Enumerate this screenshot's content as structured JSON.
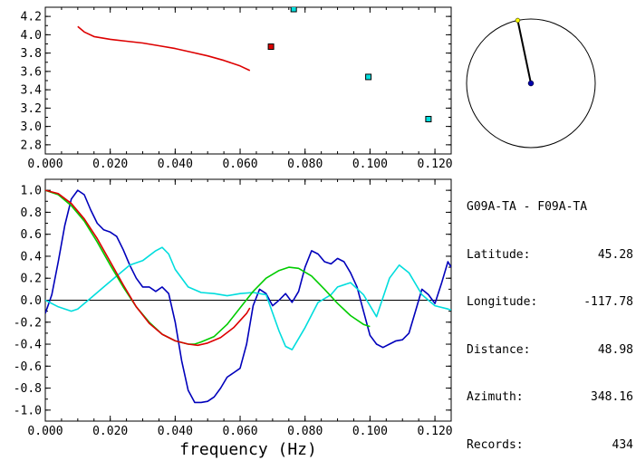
{
  "info_panel": {
    "title": "G09A-TA - F09A-TA",
    "rows": [
      {
        "label": "Latitude:",
        "value": "45.28"
      },
      {
        "label": "Longitude:",
        "value": "-117.78"
      },
      {
        "label": "Distance:",
        "value": "48.98"
      },
      {
        "label": "Azimuth:",
        "value": "348.16"
      },
      {
        "label": "Records:",
        "value": "434"
      }
    ]
  },
  "compass": {
    "azimuth_deg": 348.16,
    "colors": {
      "circle": "#000000",
      "needle": "#000000",
      "center_dot": "#0000aa",
      "tip_dot": "#ffff00"
    }
  },
  "chart_data": [
    {
      "type": "scatter",
      "panel": "top",
      "xlabel": "",
      "ylabel": "",
      "xlim": [
        0.0,
        0.125
      ],
      "ylim": [
        2.7,
        4.3
      ],
      "xticks": [
        "0.000",
        "0.020",
        "0.040",
        "0.060",
        "0.080",
        "0.100",
        "0.120"
      ],
      "xtick_values": [
        0.0,
        0.02,
        0.04,
        0.06,
        0.08,
        0.1,
        0.12
      ],
      "yticks": [
        "2.8",
        "3.0",
        "3.2",
        "3.4",
        "3.6",
        "3.8",
        "4.0",
        "4.2"
      ],
      "ytick_values": [
        2.8,
        3.0,
        3.2,
        3.4,
        3.6,
        3.8,
        4.0,
        4.2
      ],
      "grid": false,
      "series": [
        {
          "kind": "line",
          "color": "#dd0000",
          "x": [
            0.01,
            0.012,
            0.015,
            0.02,
            0.025,
            0.03,
            0.035,
            0.04,
            0.045,
            0.05,
            0.055,
            0.06,
            0.063
          ],
          "y": [
            4.09,
            4.03,
            3.98,
            3.95,
            3.93,
            3.91,
            3.88,
            3.85,
            3.81,
            3.77,
            3.72,
            3.66,
            3.61
          ]
        },
        {
          "kind": "points",
          "color": "#dd0000",
          "x": [
            0.0695
          ],
          "y": [
            3.87
          ]
        },
        {
          "kind": "points",
          "color": "#00dddd",
          "x": [
            0.0765,
            0.0995,
            0.118
          ],
          "y": [
            4.28,
            3.54,
            3.08
          ]
        }
      ]
    },
    {
      "type": "line",
      "panel": "bottom",
      "xlabel": "frequency  (Hz)",
      "ylabel": "",
      "xlim": [
        0.0,
        0.125
      ],
      "ylim": [
        -1.1,
        1.1
      ],
      "xticks": [
        "0.000",
        "0.020",
        "0.040",
        "0.060",
        "0.080",
        "0.100",
        "0.120"
      ],
      "xtick_values": [
        0.0,
        0.02,
        0.04,
        0.06,
        0.08,
        0.1,
        0.12
      ],
      "yticks": [
        "-1.0",
        "-0.8",
        "-0.6",
        "-0.4",
        "-0.2",
        "0.0",
        "0.2",
        "0.4",
        "0.6",
        "0.8",
        "1.0"
      ],
      "ytick_values": [
        -1.0,
        -0.8,
        -0.6,
        -0.4,
        -0.2,
        0.0,
        0.2,
        0.4,
        0.6,
        0.8,
        1.0
      ],
      "zero_line": true,
      "grid": false,
      "series": [
        {
          "color": "#0000bb",
          "x": [
            0.0,
            0.002,
            0.004,
            0.006,
            0.008,
            0.01,
            0.012,
            0.014,
            0.016,
            0.018,
            0.02,
            0.022,
            0.024,
            0.026,
            0.028,
            0.03,
            0.032,
            0.034,
            0.036,
            0.038,
            0.04,
            0.042,
            0.044,
            0.046,
            0.048,
            0.05,
            0.052,
            0.054,
            0.056,
            0.058,
            0.06,
            0.062,
            0.064,
            0.066,
            0.068,
            0.07,
            0.072,
            0.074,
            0.076,
            0.078,
            0.08,
            0.082,
            0.084,
            0.086,
            0.088,
            0.09,
            0.092,
            0.094,
            0.096,
            0.098,
            0.1,
            0.102,
            0.104,
            0.106,
            0.108,
            0.11,
            0.112,
            0.114,
            0.116,
            0.118,
            0.12,
            0.122,
            0.124,
            0.125
          ],
          "y": [
            -0.12,
            0.05,
            0.35,
            0.68,
            0.92,
            1.0,
            0.96,
            0.82,
            0.7,
            0.64,
            0.62,
            0.58,
            0.46,
            0.32,
            0.2,
            0.12,
            0.12,
            0.08,
            0.12,
            0.06,
            -0.2,
            -0.55,
            -0.82,
            -0.93,
            -0.93,
            -0.92,
            -0.88,
            -0.8,
            -0.7,
            -0.66,
            -0.62,
            -0.4,
            -0.05,
            0.1,
            0.06,
            -0.05,
            0.0,
            0.06,
            -0.02,
            0.08,
            0.3,
            0.45,
            0.42,
            0.35,
            0.33,
            0.38,
            0.35,
            0.25,
            0.12,
            -0.1,
            -0.32,
            -0.4,
            -0.43,
            -0.4,
            -0.37,
            -0.36,
            -0.3,
            -0.1,
            0.1,
            0.05,
            -0.03,
            0.15,
            0.35,
            0.3
          ]
        },
        {
          "color": "#00dddd",
          "x": [
            0.0,
            0.004,
            0.008,
            0.01,
            0.014,
            0.018,
            0.022,
            0.026,
            0.03,
            0.034,
            0.036,
            0.038,
            0.04,
            0.044,
            0.048,
            0.052,
            0.056,
            0.06,
            0.064,
            0.068,
            0.072,
            0.074,
            0.076,
            0.08,
            0.084,
            0.088,
            0.09,
            0.094,
            0.098,
            0.102,
            0.106,
            0.109,
            0.112,
            0.116,
            0.12,
            0.124,
            0.125
          ],
          "y": [
            0.0,
            -0.06,
            -0.1,
            -0.08,
            0.02,
            0.12,
            0.22,
            0.32,
            0.36,
            0.45,
            0.48,
            0.42,
            0.28,
            0.12,
            0.07,
            0.06,
            0.04,
            0.06,
            0.07,
            0.05,
            -0.28,
            -0.42,
            -0.45,
            -0.25,
            -0.02,
            0.05,
            0.12,
            0.16,
            0.05,
            -0.15,
            0.2,
            0.32,
            0.25,
            0.05,
            -0.05,
            -0.08,
            -0.09
          ]
        },
        {
          "color": "#00cc00",
          "x": [
            0.0,
            0.004,
            0.008,
            0.012,
            0.016,
            0.02,
            0.024,
            0.028,
            0.032,
            0.036,
            0.04,
            0.044,
            0.046,
            0.048,
            0.052,
            0.056,
            0.06,
            0.064,
            0.068,
            0.072,
            0.075,
            0.078,
            0.082,
            0.086,
            0.09,
            0.094,
            0.098,
            0.1
          ],
          "y": [
            1.0,
            0.96,
            0.86,
            0.72,
            0.53,
            0.32,
            0.12,
            -0.06,
            -0.2,
            -0.31,
            -0.37,
            -0.4,
            -0.4,
            -0.38,
            -0.33,
            -0.22,
            -0.07,
            0.08,
            0.2,
            0.27,
            0.3,
            0.29,
            0.22,
            0.1,
            -0.03,
            -0.14,
            -0.22,
            -0.24
          ]
        },
        {
          "color": "#dd0000",
          "x": [
            0.0,
            0.004,
            0.008,
            0.012,
            0.016,
            0.02,
            0.024,
            0.028,
            0.032,
            0.036,
            0.04,
            0.044,
            0.047,
            0.05,
            0.054,
            0.058,
            0.062,
            0.063
          ],
          "y": [
            1.0,
            0.97,
            0.88,
            0.74,
            0.56,
            0.35,
            0.14,
            -0.06,
            -0.21,
            -0.31,
            -0.37,
            -0.4,
            -0.41,
            -0.39,
            -0.34,
            -0.25,
            -0.12,
            -0.07
          ]
        }
      ]
    }
  ]
}
